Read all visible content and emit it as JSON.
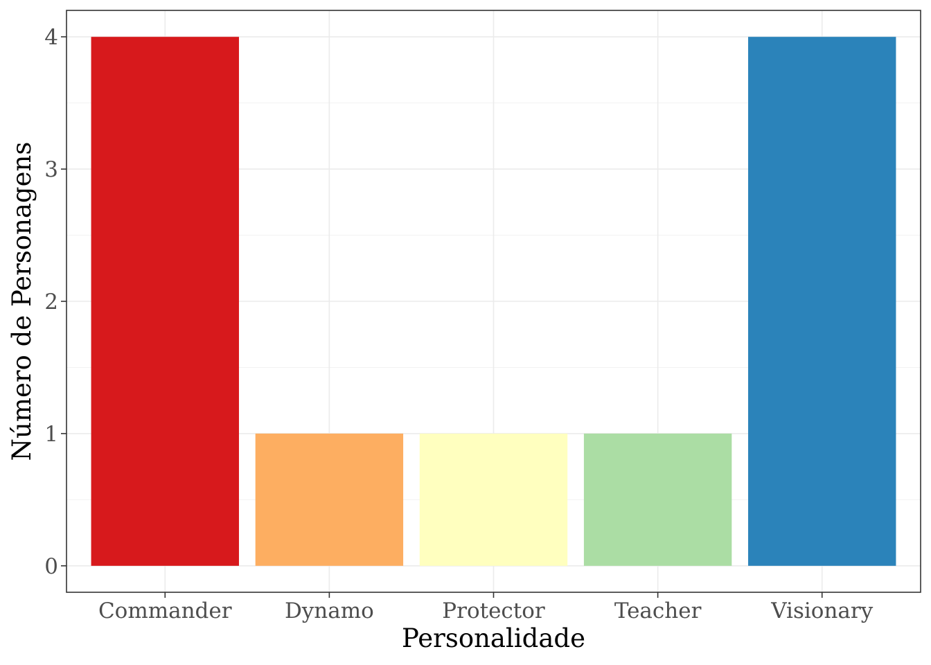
{
  "chart_data": {
    "type": "bar",
    "categories": [
      "Commander",
      "Dynamo",
      "Protector",
      "Teacher",
      "Visionary"
    ],
    "values": [
      4,
      1,
      1,
      1,
      4
    ],
    "colors": [
      "#d7191c",
      "#fdae61",
      "#ffffbf",
      "#abdda4",
      "#2b83ba"
    ],
    "xlabel": "Personalidade",
    "ylabel": "Número de Personagens",
    "yticks": [
      0,
      1,
      2,
      3,
      4
    ],
    "ylim": [
      -0.2,
      4.2
    ],
    "grid": true,
    "legend": "none"
  }
}
